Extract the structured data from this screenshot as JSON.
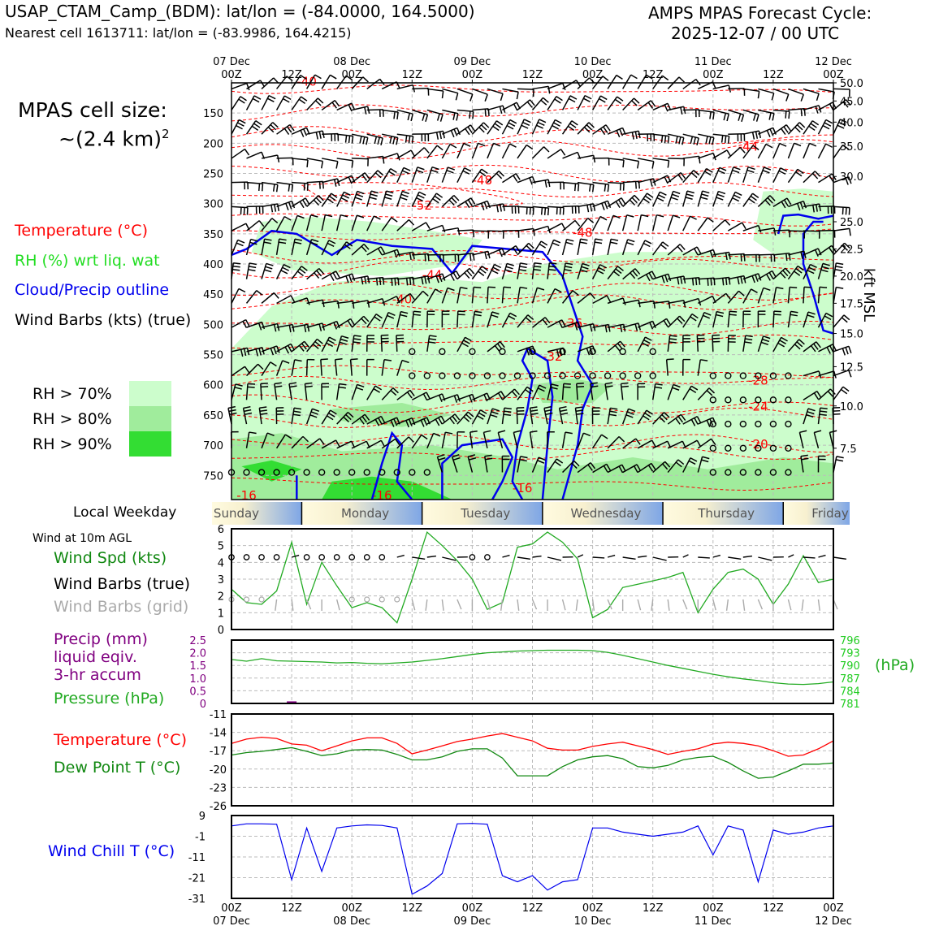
{
  "header": {
    "title_left": "USAP_CTAM_Camp_(BDM): lat/lon = (-84.0000, 164.5000)",
    "subtitle_left": "Nearest cell 1613711: lat/lon = (-83.9986, 164.4215)",
    "title_right_1": "AMPS MPAS Forecast Cycle:",
    "title_right_2": "2025-12-07 / 00 UTC"
  },
  "side": {
    "cell_size_1": "MPAS cell size:",
    "cell_size_2": "~(2.4 km)",
    "cell_size_sup": "2",
    "legend_temp": "Temperature (°C)",
    "legend_rh": "RH (%) wrt liq. wat",
    "legend_cloud": "Cloud/Precip outline",
    "legend_wind": "Wind Barbs (kts) (true)",
    "rh70": "RH > 70%",
    "rh80": "RH > 80%",
    "rh90": "RH > 90%",
    "kft_label": "kft MSL",
    "local_weekday": "Local Weekday",
    "wind10m": "Wind at 10m AGL",
    "wspd": "Wind Spd (kts)",
    "wbarb_true": "Wind Barbs (true)",
    "wbarb_grid": "Wind Barbs (grid)",
    "precip1": "Precip (mm)",
    "precip2": "liquid eqiv.",
    "precip3": "3-hr accum",
    "pressure": "Pressure (hPa)",
    "hpa": "(hPa)",
    "temp": "Temperature (°C)",
    "dewp": "Dew Point T (°C)",
    "wchill": "Wind Chill T (°C)"
  },
  "colors": {
    "temperature": "#ff0000",
    "rh": "#22cc22",
    "cloud": "#0000ee",
    "pressure": "#22aa22",
    "precip": "#800080",
    "dewpoint": "#118811",
    "windchill": "#0000ee",
    "rh70": "#ccfdcc",
    "rh80": "#a0ec9c",
    "rh90": "#33dd33"
  },
  "time_axis": {
    "top_dates": [
      "07 Dec",
      "08 Dec",
      "09 Dec",
      "10 Dec",
      "11 Dec",
      "12 Dec"
    ],
    "hours": [
      "00Z",
      "12Z",
      "00Z",
      "12Z",
      "00Z",
      "12Z",
      "00Z",
      "12Z",
      "00Z",
      "12Z",
      "00Z"
    ],
    "weekdays": [
      "Sunday",
      "Monday",
      "Tuesday",
      "Wednesday",
      "Thursday",
      "Friday"
    ]
  },
  "chart_data": [
    {
      "type": "heatmap",
      "name": "time-height cross-section",
      "y_left_label_values": [
        150,
        200,
        250,
        300,
        350,
        400,
        450,
        500,
        550,
        600,
        650,
        700,
        750
      ],
      "y_right_label_values": [
        "50.0",
        "45.0",
        "40.0",
        "35.0",
        "30.0",
        "25.0",
        "22.5",
        "20.0",
        "17.5",
        "15.0",
        "12.5",
        "10.0",
        "7.5"
      ],
      "y_right_label_pressures": [
        100,
        130,
        165,
        205,
        255,
        330,
        375,
        420,
        465,
        515,
        570,
        635,
        705
      ],
      "temperature_contour_labels": [
        {
          "t": 15,
          "p": 105,
          "text": "-40"
        },
        {
          "t": 103,
          "p": 212,
          "text": "-44"
        },
        {
          "t": 50,
          "p": 268,
          "text": "-48"
        },
        {
          "t": 38,
          "p": 310,
          "text": "-52"
        },
        {
          "t": 70,
          "p": 355,
          "text": "-48"
        },
        {
          "t": 40,
          "p": 425,
          "text": "-44"
        },
        {
          "t": 34,
          "p": 465,
          "text": "-40"
        },
        {
          "t": 68,
          "p": 505,
          "text": "-36"
        },
        {
          "t": 64,
          "p": 560,
          "text": "-32"
        },
        {
          "t": 105,
          "p": 600,
          "text": "-28"
        },
        {
          "t": 105,
          "p": 643,
          "text": "-24"
        },
        {
          "t": 105,
          "p": 705,
          "text": "-20"
        },
        {
          "t": 58,
          "p": 778,
          "text": "-16"
        },
        {
          "t": 3,
          "p": 790,
          "text": "-16"
        },
        {
          "t": 30,
          "p": 790,
          "text": "-16"
        }
      ],
      "legend": [
        "Temperature (°C)",
        "RH (%) wrt liq. wat",
        "Cloud/Precip outline",
        "Wind Barbs (kts) (true)"
      ]
    },
    {
      "type": "line",
      "name": "wind speed 10m",
      "ylim": [
        0,
        6
      ],
      "yticks": [
        0,
        1,
        2,
        3,
        4,
        5,
        6
      ],
      "x_hours": [
        0,
        3,
        6,
        9,
        12,
        15,
        18,
        21,
        24,
        27,
        30,
        33,
        36,
        39,
        42,
        45,
        48,
        51,
        54,
        57,
        60,
        63,
        66,
        69,
        72,
        75,
        78,
        81,
        84,
        87,
        90,
        93,
        96,
        99,
        102,
        105,
        108,
        111,
        114,
        117,
        120
      ],
      "series": [
        {
          "name": "Wind Spd (kts)",
          "values": [
            2.4,
            1.6,
            1.5,
            2.3,
            5.2,
            1.5,
            4.0,
            2.6,
            1.3,
            1.6,
            1.3,
            0.4,
            3.0,
            5.8,
            5.0,
            4.1,
            3.0,
            1.2,
            1.6,
            4.9,
            5.1,
            5.8,
            5.2,
            4.2,
            0.7,
            1.2,
            2.5,
            2.7,
            2.9,
            3.1,
            3.4,
            1.0,
            2.4,
            3.4,
            3.6,
            3.0,
            1.5,
            2.7,
            4.4,
            2.8,
            3.0
          ]
        }
      ]
    },
    {
      "type": "line",
      "name": "precip and pressure",
      "precip_ylim": [
        0,
        2.5
      ],
      "precip_yticks": [
        "0",
        "0.5",
        "1.0",
        "1.5",
        "2.0",
        "2.5"
      ],
      "pressure_ticks": [
        "781",
        "784",
        "787",
        "790",
        "793",
        "796"
      ],
      "pressure_ylim": [
        781,
        796
      ],
      "x_hours": [
        0,
        3,
        6,
        9,
        12,
        15,
        18,
        21,
        24,
        27,
        30,
        33,
        36,
        39,
        42,
        45,
        48,
        51,
        54,
        57,
        60,
        63,
        66,
        69,
        72,
        75,
        78,
        81,
        84,
        87,
        90,
        93,
        96,
        99,
        102,
        105,
        108,
        111,
        114,
        117,
        120
      ],
      "series": [
        {
          "name": "Pressure (hPa)",
          "values": [
            791.4,
            791.0,
            791.6,
            791.1,
            791.0,
            790.9,
            790.8,
            790.6,
            790.7,
            790.5,
            790.4,
            790.6,
            790.8,
            791.2,
            791.6,
            792.1,
            792.6,
            793.0,
            793.2,
            793.4,
            793.5,
            793.6,
            793.6,
            793.6,
            793.5,
            793.1,
            792.4,
            791.6,
            790.8,
            790.0,
            789.3,
            788.6,
            787.9,
            787.3,
            786.8,
            786.4,
            785.9,
            785.6,
            785.5,
            785.7,
            786.1
          ]
        },
        {
          "name": "Precip (mm)",
          "values": [
            0,
            0,
            0,
            0,
            0.05,
            0,
            0,
            0,
            0,
            0,
            0,
            0,
            0,
            0,
            0,
            0,
            0,
            0,
            0,
            0,
            0,
            0,
            0,
            0,
            0,
            0,
            0,
            0,
            0,
            0,
            0,
            0,
            0,
            0,
            0,
            0,
            0,
            0,
            0,
            0,
            0
          ]
        }
      ]
    },
    {
      "type": "line",
      "name": "temperature and dew point",
      "ylim": [
        -26,
        -11
      ],
      "yticks": [
        -26,
        -23,
        -20,
        -17,
        -14,
        -11
      ],
      "x_hours": [
        0,
        3,
        6,
        9,
        12,
        15,
        18,
        21,
        24,
        27,
        30,
        33,
        36,
        39,
        42,
        45,
        48,
        51,
        54,
        57,
        60,
        63,
        66,
        69,
        72,
        75,
        78,
        81,
        84,
        87,
        90,
        93,
        96,
        99,
        102,
        105,
        108,
        111,
        114,
        117,
        120
      ],
      "series": [
        {
          "name": "Temperature (°C)",
          "values": [
            -15.8,
            -15.1,
            -14.8,
            -15.0,
            -15.9,
            -16.1,
            -17.0,
            -16.2,
            -15.4,
            -14.9,
            -14.9,
            -15.8,
            -17.5,
            -16.9,
            -16.2,
            -15.5,
            -15.1,
            -14.6,
            -14.2,
            -14.8,
            -15.4,
            -16.6,
            -16.9,
            -16.9,
            -16.3,
            -15.9,
            -15.6,
            -16.2,
            -16.8,
            -17.6,
            -17.1,
            -16.7,
            -15.9,
            -15.6,
            -15.8,
            -16.2,
            -17.0,
            -17.9,
            -17.7,
            -16.7,
            -15.4
          ]
        },
        {
          "name": "Dew Point T (°C)",
          "values": [
            -17.7,
            -17.3,
            -17.1,
            -16.8,
            -16.5,
            -17.1,
            -17.8,
            -17.5,
            -16.9,
            -16.8,
            -16.9,
            -17.6,
            -18.5,
            -18.5,
            -18.0,
            -17.1,
            -16.7,
            -16.7,
            -18.2,
            -21.1,
            -21.1,
            -21.1,
            -19.6,
            -18.5,
            -18.0,
            -17.8,
            -18.3,
            -19.6,
            -19.8,
            -19.4,
            -18.5,
            -18.1,
            -17.9,
            -18.9,
            -20.3,
            -21.5,
            -21.3,
            -20.3,
            -19.2,
            -19.2,
            -19.0
          ]
        }
      ]
    },
    {
      "type": "line",
      "name": "wind chill",
      "ylim": [
        -31,
        9
      ],
      "yticks": [
        -31,
        -21,
        -11,
        -1,
        9
      ],
      "x_hours": [
        0,
        3,
        6,
        9,
        12,
        15,
        18,
        21,
        24,
        27,
        30,
        33,
        36,
        39,
        42,
        45,
        48,
        51,
        54,
        57,
        60,
        63,
        66,
        69,
        72,
        75,
        78,
        81,
        84,
        87,
        90,
        93,
        96,
        99,
        102,
        105,
        108,
        111,
        114,
        117,
        120
      ],
      "series": [
        {
          "name": "Wind Chill T (°C)",
          "values": [
            4,
            5,
            5,
            4.8,
            -22,
            3,
            -18,
            3,
            4,
            4.5,
            4.2,
            3,
            -29,
            -25,
            -19,
            5,
            5.2,
            4.8,
            -20,
            -23,
            -20,
            -27,
            -23,
            -22,
            3,
            3,
            1,
            0,
            -1,
            0,
            1,
            4,
            -10,
            4,
            2,
            -23,
            2,
            0,
            1,
            3,
            4
          ]
        }
      ]
    }
  ]
}
